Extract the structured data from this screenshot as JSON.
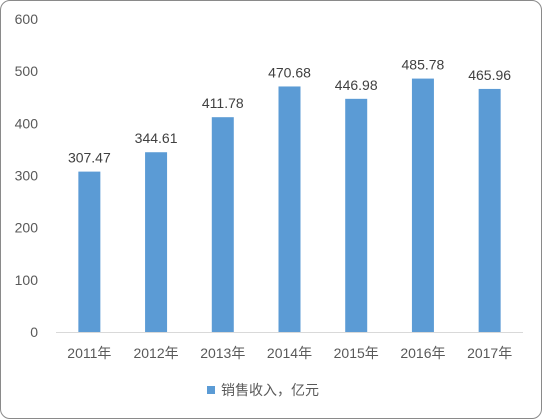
{
  "chart_data": {
    "type": "bar",
    "categories": [
      "2011年",
      "2012年",
      "2013年",
      "2014年",
      "2015年",
      "2016年",
      "2017年"
    ],
    "series": [
      {
        "name": "销售收入，亿元",
        "values": [
          307.47,
          344.61,
          411.78,
          470.68,
          446.98,
          485.78,
          465.96
        ],
        "color": "#5B9BD5"
      }
    ],
    "y_ticks": [
      0,
      100,
      200,
      300,
      400,
      500,
      600
    ],
    "ylim": [
      0,
      600
    ],
    "grid": false,
    "data_labels": true,
    "legend": "bottom",
    "axis_line_color": "#D9D9D9"
  }
}
